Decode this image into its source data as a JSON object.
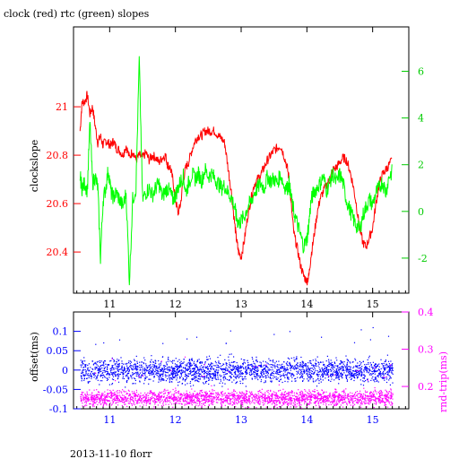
{
  "chart_data": [
    {
      "type": "line",
      "title": "clock (red) rtc (green) slopes",
      "ylabel_left": "clockslope",
      "x_ticks": [
        "11",
        "12",
        "13",
        "14",
        "15"
      ],
      "xlim": [
        10.45,
        15.55
      ],
      "ylim_left": [
        20.23,
        21.33
      ],
      "y_ticks_left": [
        "20.4",
        "20.6",
        "20.8",
        "21"
      ],
      "ylim_right": [
        -3.5,
        7.9
      ],
      "y_ticks_right": [
        "-2",
        "0",
        "2",
        "4",
        "6"
      ],
      "colors": {
        "clock": "#ff0000",
        "rtc": "#00ff00",
        "axis": "#000000"
      },
      "series": [
        {
          "name": "clock",
          "axis": "left",
          "x": [
            10.55,
            10.58,
            10.62,
            10.66,
            10.7,
            10.74,
            10.78,
            10.82,
            10.86,
            10.9,
            10.94,
            10.98,
            11.02,
            11.06,
            11.1,
            11.15,
            11.2,
            11.25,
            11.3,
            11.35,
            11.4,
            11.45,
            11.5,
            11.55,
            11.6,
            11.65,
            11.7,
            11.75,
            11.8,
            11.85,
            11.88,
            11.92,
            11.96,
            12.0,
            12.04,
            12.08,
            12.12,
            12.16,
            12.2,
            12.25,
            12.3,
            12.35,
            12.4,
            12.45,
            12.5,
            12.55,
            12.6,
            12.65,
            12.7,
            12.75,
            12.8,
            12.85,
            12.9,
            12.93,
            12.96,
            13.0,
            13.05,
            13.1,
            13.15,
            13.2,
            13.25,
            13.3,
            13.35,
            13.4,
            13.45,
            13.5,
            13.55,
            13.6,
            13.65,
            13.7,
            13.73,
            13.76,
            13.8,
            13.85,
            13.9,
            13.95,
            14.0,
            14.03,
            14.06,
            14.1,
            14.15,
            14.2,
            14.25,
            14.3,
            14.35,
            14.4,
            14.45,
            14.5,
            14.55,
            14.6,
            14.65,
            14.7,
            14.75,
            14.8,
            14.85,
            14.9,
            14.95,
            15.0,
            15.05,
            15.1,
            15.15,
            15.2,
            15.25,
            15.3
          ],
          "y": [
            20.9,
            21.02,
            21.02,
            21.05,
            20.97,
            21.0,
            20.92,
            20.85,
            20.88,
            20.84,
            20.86,
            20.85,
            20.84,
            20.86,
            20.83,
            20.82,
            20.8,
            20.84,
            20.79,
            20.82,
            20.78,
            20.8,
            20.79,
            20.81,
            20.78,
            20.8,
            20.79,
            20.77,
            20.79,
            20.8,
            20.76,
            20.75,
            20.7,
            20.62,
            20.56,
            20.6,
            20.7,
            20.75,
            20.77,
            20.82,
            20.86,
            20.88,
            20.88,
            20.9,
            20.9,
            20.9,
            20.9,
            20.88,
            20.87,
            20.85,
            20.75,
            20.65,
            20.52,
            20.45,
            20.4,
            20.38,
            20.45,
            20.55,
            20.62,
            20.68,
            20.7,
            20.72,
            20.75,
            20.78,
            20.8,
            20.82,
            20.83,
            20.84,
            20.8,
            20.75,
            20.7,
            20.6,
            20.48,
            20.42,
            20.35,
            20.3,
            20.28,
            20.3,
            20.38,
            20.45,
            20.55,
            20.62,
            20.65,
            20.68,
            20.7,
            20.74,
            20.75,
            20.77,
            20.79,
            20.78,
            20.74,
            20.68,
            20.6,
            20.5,
            20.44,
            20.42,
            20.46,
            20.5,
            20.6,
            20.68,
            20.72,
            20.74,
            20.76,
            20.78
          ]
        },
        {
          "name": "rtc",
          "axis": "right",
          "x": [
            10.55,
            10.58,
            10.62,
            10.66,
            10.7,
            10.74,
            10.78,
            10.82,
            10.86,
            10.9,
            10.94,
            10.98,
            11.02,
            11.06,
            11.1,
            11.15,
            11.2,
            11.25,
            11.3,
            11.35,
            11.4,
            11.45,
            11.5,
            11.55,
            11.6,
            11.65,
            11.7,
            11.75,
            11.8,
            11.85,
            11.88,
            11.92,
            11.96,
            12.0,
            12.04,
            12.08,
            12.12,
            12.16,
            12.2,
            12.25,
            12.3,
            12.35,
            12.4,
            12.45,
            12.5,
            12.55,
            12.6,
            12.65,
            12.7,
            12.75,
            12.8,
            12.85,
            12.9,
            12.93,
            12.96,
            13.0,
            13.05,
            13.1,
            13.15,
            13.2,
            13.25,
            13.3,
            13.35,
            13.4,
            13.45,
            13.5,
            13.55,
            13.6,
            13.65,
            13.7,
            13.73,
            13.76,
            13.8,
            13.85,
            13.9,
            13.95,
            14.0,
            14.03,
            14.06,
            14.1,
            14.15,
            14.2,
            14.25,
            14.3,
            14.35,
            14.4,
            14.45,
            14.5,
            14.55,
            14.6,
            14.65,
            14.7,
            14.75,
            14.8,
            14.85,
            14.9,
            14.95,
            15.0,
            15.05,
            15.1,
            15.15,
            15.2,
            15.25,
            15.3
          ],
          "y": [
            1.5,
            1.0,
            1.2,
            0.9,
            3.8,
            1.2,
            1.5,
            1.0,
            -2.0,
            0.5,
            1.0,
            1.8,
            0.8,
            0.6,
            0.8,
            0.5,
            0.2,
            0.8,
            -3.0,
            0.5,
            1.0,
            6.5,
            0.5,
            0.8,
            1.0,
            0.7,
            1.0,
            1.2,
            0.6,
            0.9,
            1.0,
            0.8,
            0.5,
            0.7,
            1.0,
            1.3,
            1.5,
            0.8,
            1.2,
            1.6,
            1.4,
            1.6,
            1.3,
            1.8,
            1.5,
            1.6,
            1.4,
            1.2,
            1.0,
            1.1,
            0.8,
            0.6,
            0.2,
            -0.3,
            -0.5,
            -0.4,
            -0.2,
            0.2,
            0.4,
            0.8,
            1.0,
            1.2,
            1.0,
            1.5,
            1.3,
            1.4,
            1.2,
            1.6,
            1.1,
            1.0,
            1.2,
            0.6,
            0.0,
            -0.5,
            -1.0,
            -1.5,
            -1.2,
            -0.5,
            0.4,
            0.8,
            1.0,
            1.2,
            1.5,
            0.9,
            1.3,
            1.6,
            1.2,
            1.6,
            1.2,
            0.5,
            0.1,
            -0.3,
            -0.6,
            -0.8,
            -0.2,
            0.2,
            0.5,
            0.3,
            0.8,
            1.0,
            1.3,
            0.8,
            1.5,
            1.7
          ]
        }
      ]
    },
    {
      "type": "scatter",
      "ylabel_left": "offset(ms)",
      "ylabel_right": "rnd-trip(ms)",
      "x_ticks": [
        "11",
        "12",
        "13",
        "14",
        "15"
      ],
      "xlim": [
        10.45,
        15.55
      ],
      "ylim_left": [
        -0.1,
        0.15
      ],
      "y_ticks_left": [
        "-0.1",
        "-0.05",
        "0",
        "0.05",
        "0.1"
      ],
      "ylim_right": [
        0.14,
        0.4
      ],
      "y_ticks_right": [
        "0.2",
        "0.3",
        "0.4"
      ],
      "colors": {
        "offset": "#0000ff",
        "rndtrip": "#ff00ff",
        "axis": "#000000"
      },
      "series": [
        {
          "name": "offset",
          "axis": "left",
          "center": 0.0,
          "spread": 0.03
        },
        {
          "name": "rnd-trip",
          "axis": "right",
          "center": 0.17,
          "spread": 0.02
        }
      ]
    }
  ],
  "footer": "2013-11-10 florr"
}
